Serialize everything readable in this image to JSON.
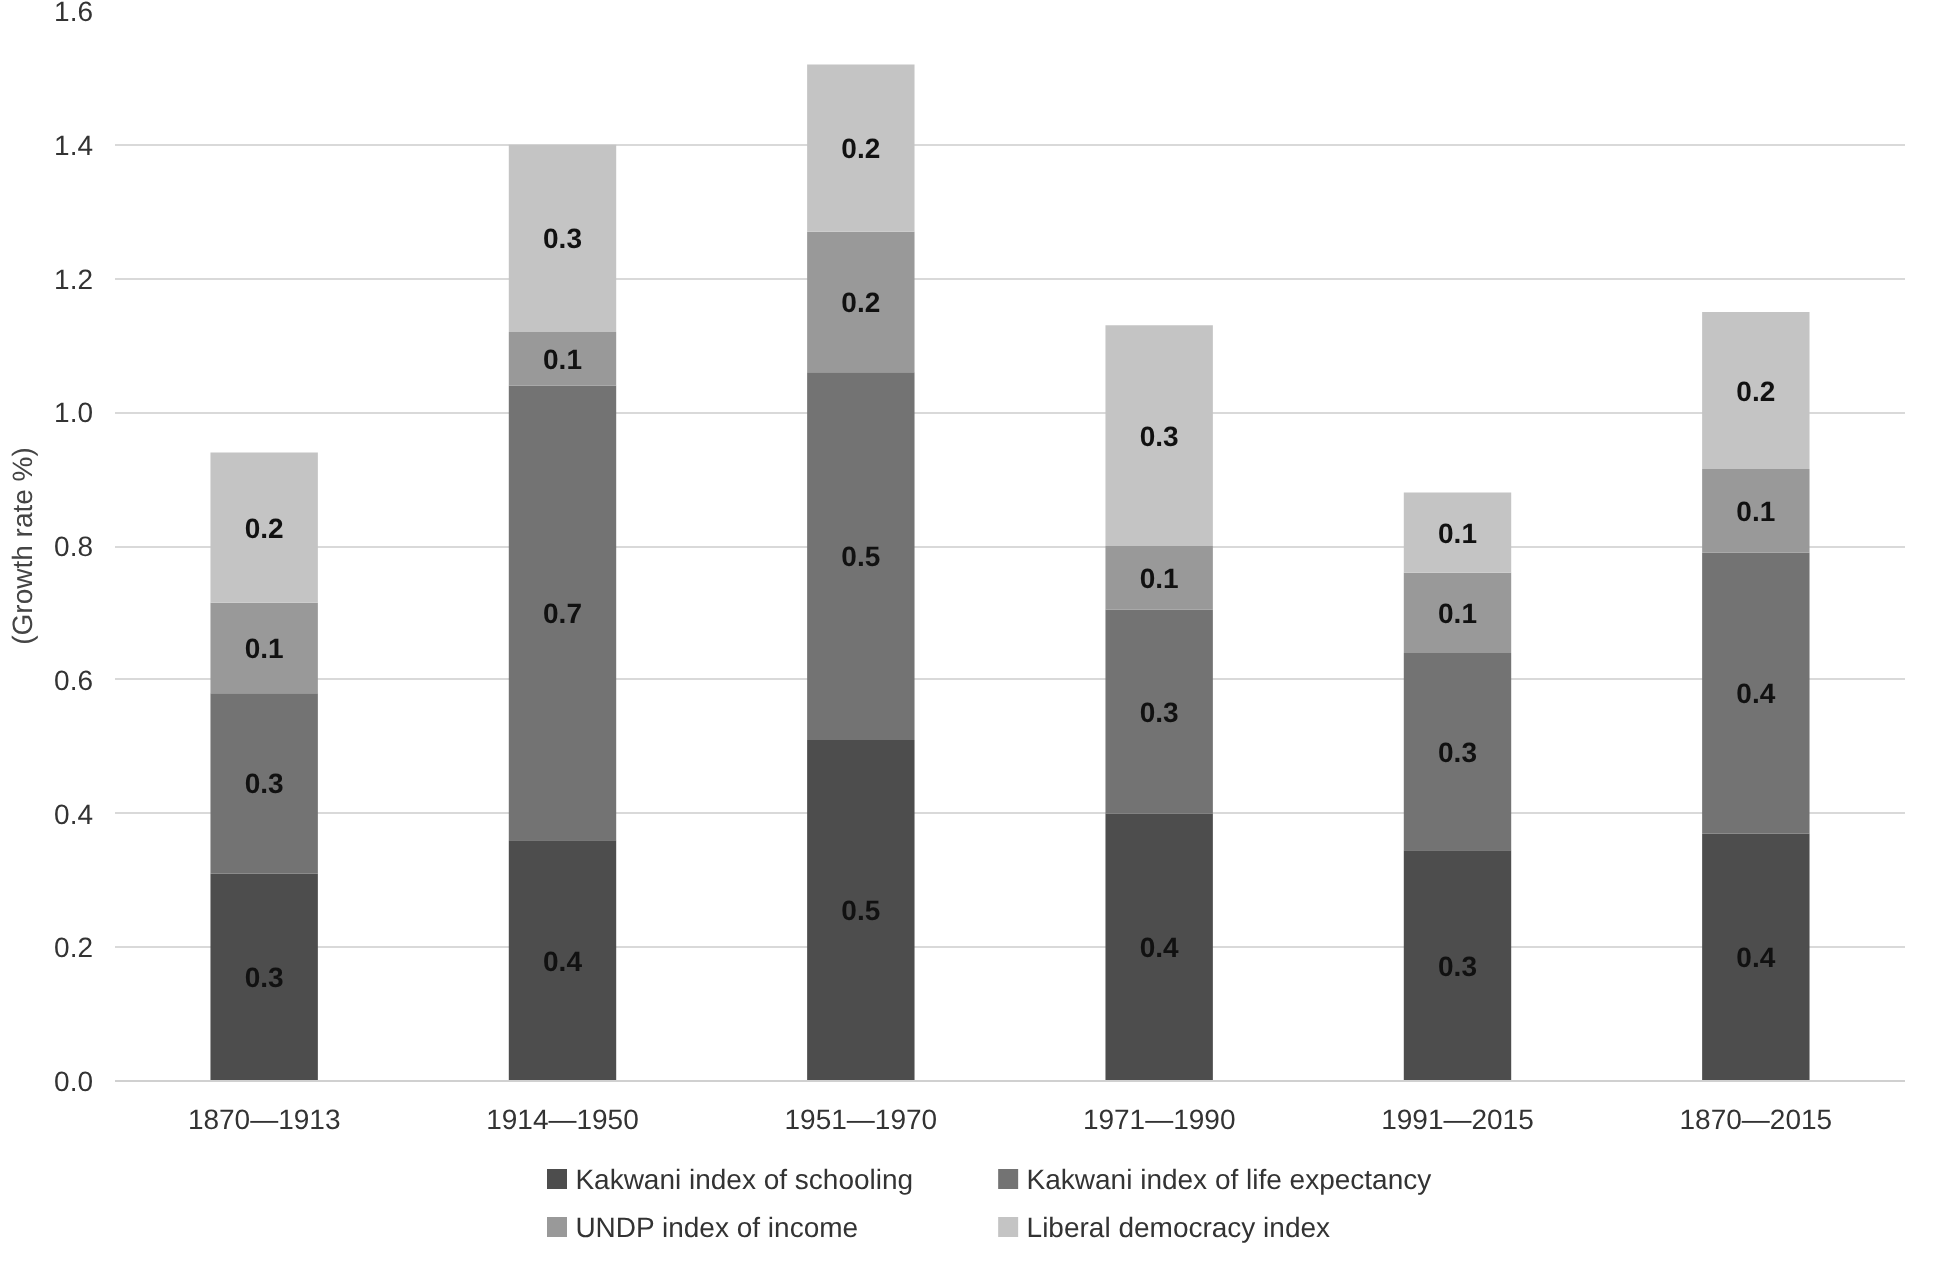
{
  "chart_data": {
    "type": "bar",
    "stacked": true,
    "ylabel": "(Growth rate %)",
    "categories": [
      "1870—1913",
      "1914—1950",
      "1951—1970",
      "1971—1990",
      "1991—2015",
      "1870—2015"
    ],
    "series": [
      {
        "name": "Kakwani index of schooling",
        "color": "#4d4d4d",
        "values": [
          0.31,
          0.36,
          0.51,
          0.4,
          0.345,
          0.37
        ],
        "value_labels": [
          "0.3",
          "0.4",
          "0.5",
          "0.4",
          "0.3",
          "0.4"
        ]
      },
      {
        "name": "Kakwani index of life expectancy",
        "color": "#737373",
        "values": [
          0.27,
          0.68,
          0.55,
          0.305,
          0.295,
          0.42
        ],
        "value_labels": [
          "0.3",
          "0.7",
          "0.5",
          "0.3",
          "0.3",
          "0.4"
        ]
      },
      {
        "name": "UNDP index of income",
        "color": "#999999",
        "values": [
          0.135,
          0.08,
          0.21,
          0.095,
          0.12,
          0.125
        ],
        "value_labels": [
          "0.1",
          "0.1",
          "0.2",
          "0.1",
          "0.1",
          "0.1"
        ]
      },
      {
        "name": "Liberal democracy index",
        "color": "#c4c4c4",
        "values": [
          0.225,
          0.28,
          0.25,
          0.33,
          0.12,
          0.235
        ],
        "value_labels": [
          "0.2",
          "0.3",
          "0.2",
          "0.3",
          "0.1",
          "0.2"
        ]
      }
    ],
    "ylim": [
      0,
      1.6
    ],
    "yticks": [
      {
        "value": 0,
        "label": "0.0"
      },
      0.2,
      0.4,
      0.6,
      0.8,
      {
        "value": 1.0,
        "label": "1.0"
      },
      1.2,
      1.4,
      1.6
    ],
    "grid": "y",
    "legend": "bottom"
  }
}
